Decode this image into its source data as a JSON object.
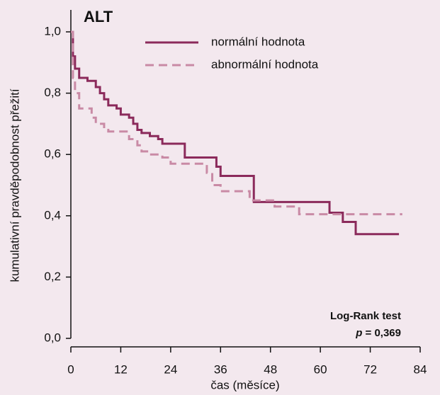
{
  "chart_data": {
    "type": "step",
    "title": "ALT",
    "x_label": "čas (měsíce)",
    "y_label": "kumulativní pravděpodobnost přežití",
    "annotation": {
      "test": "Log-Rank test",
      "p_symbol": "p",
      "p_value": "= 0,369"
    },
    "xlim": [
      0,
      84
    ],
    "xticks": [
      0,
      12,
      24,
      36,
      48,
      60,
      72,
      84
    ],
    "ylim": [
      0,
      1
    ],
    "yticks": [
      {
        "value": 0,
        "label": "0,0"
      },
      {
        "value": 0.2,
        "label": "0,2"
      },
      {
        "value": 0.4,
        "label": "0,4"
      },
      {
        "value": 0.6,
        "label": "0,6"
      },
      {
        "value": 0.8,
        "label": "0,8"
      },
      {
        "value": 1,
        "label": "1,0"
      }
    ],
    "series": [
      {
        "name": "normální hodnota",
        "color": "#8b2a5b",
        "dashed": false,
        "x": [
          0,
          0.5,
          1,
          2,
          4,
          6,
          7,
          8,
          9,
          11,
          12,
          14,
          15,
          16,
          17,
          19,
          21,
          22,
          27.4,
          35,
          36,
          44,
          62.2,
          65.4,
          68.5,
          78.9
        ],
        "values": [
          1,
          0.92,
          0.88,
          0.85,
          0.84,
          0.82,
          0.8,
          0.78,
          0.76,
          0.75,
          0.73,
          0.72,
          0.7,
          0.68,
          0.67,
          0.66,
          0.65,
          0.635,
          0.59,
          0.56,
          0.53,
          0.445,
          0.41,
          0.38,
          0.34,
          0.34
        ]
      },
      {
        "name": "abnormální hodnota",
        "color": "#c98aa5",
        "dashed": true,
        "x": [
          0,
          0.5,
          1,
          2,
          5,
          6,
          8,
          9,
          14,
          16,
          17,
          19,
          22,
          24,
          32.7,
          34,
          36,
          43,
          49,
          54.9,
          79.7
        ],
        "values": [
          1,
          0.85,
          0.8,
          0.75,
          0.72,
          0.7,
          0.68,
          0.675,
          0.65,
          0.63,
          0.61,
          0.6,
          0.59,
          0.57,
          0.54,
          0.5,
          0.48,
          0.45,
          0.43,
          0.405,
          0.405
        ]
      }
    ]
  }
}
